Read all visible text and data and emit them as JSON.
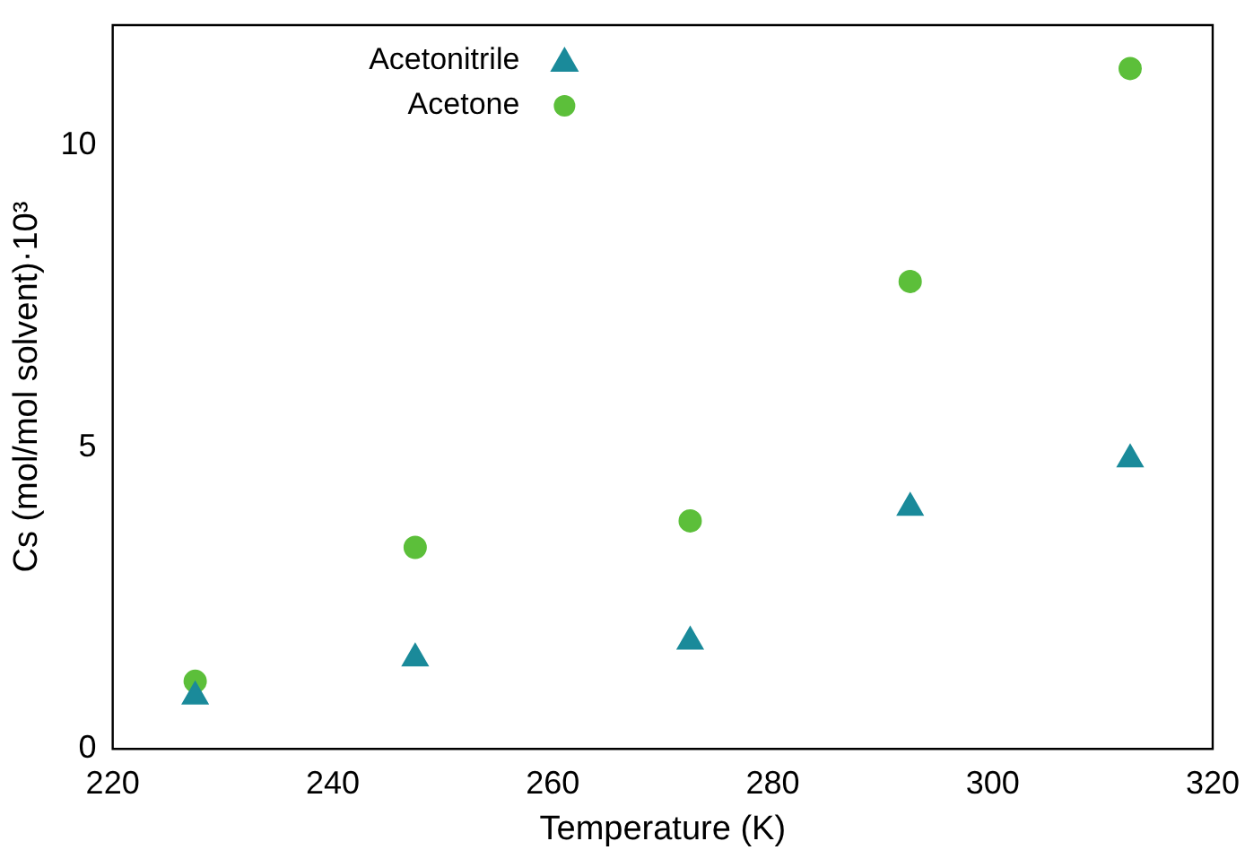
{
  "chart_data": {
    "type": "scatter",
    "xlabel": "Temperature (K)",
    "ylabel": "Cs (mol/mol solvent)·10³",
    "x": [
      227.5,
      247.5,
      272.5,
      292.5,
      312.5
    ],
    "series": [
      {
        "name": "Acetonitrile",
        "color": "#1a8a9a",
        "marker": "triangle",
        "values": [
          0.87,
          1.5,
          1.78,
          4.0,
          4.8
        ]
      },
      {
        "name": "Acetone",
        "color": "#5cbf3a",
        "marker": "circle",
        "values": [
          1.12,
          3.34,
          3.78,
          7.75,
          11.28
        ]
      }
    ],
    "xlim": [
      220,
      320
    ],
    "xticks": [
      220,
      240,
      260,
      280,
      300,
      320
    ],
    "ylim": [
      0,
      12
    ],
    "yticks": [
      0,
      5,
      10
    ],
    "grid": false,
    "legend": "top"
  }
}
